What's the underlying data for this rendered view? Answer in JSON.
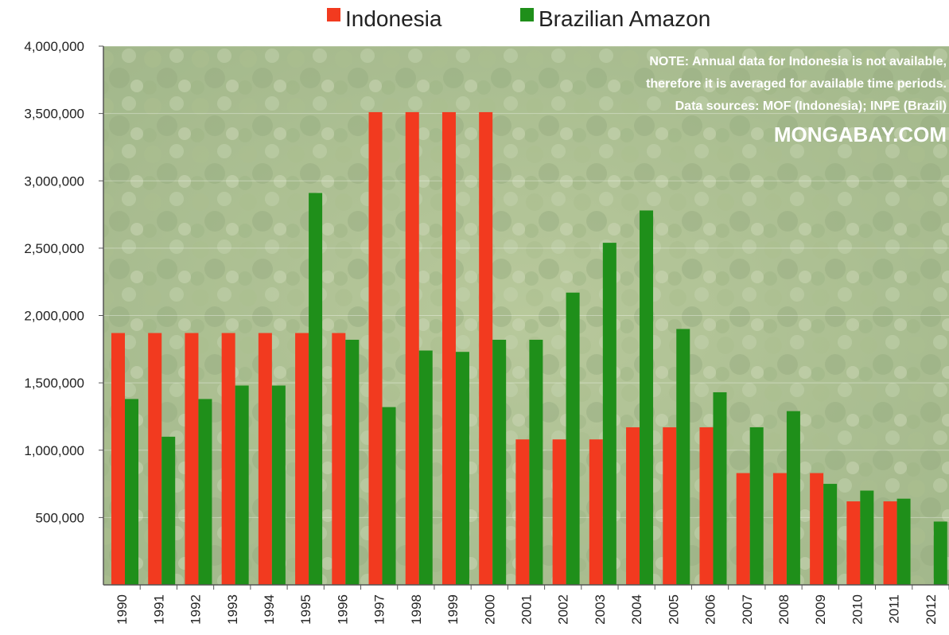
{
  "legend": {
    "indonesia_label": "Indonesia",
    "brazil_label": "Brazilian Amazon"
  },
  "note": {
    "line1": "NOTE: Annual data for Indonesia is not available,",
    "line2": "therefore it is averaged for available time periods.",
    "line3": "Data sources: MOF (Indonesia); INPE (Brazil)",
    "brand": "MONGABAY.COM"
  },
  "colors": {
    "indonesia": "#f23a1f",
    "brazil": "#1f8f1a",
    "forest_light": "#b9c99a",
    "forest_dark": "#7f9a63"
  },
  "chart_data": {
    "type": "bar",
    "categories": [
      "1990",
      "1991",
      "1992",
      "1993",
      "1994",
      "1995",
      "1996",
      "1997",
      "1998",
      "1999",
      "2000",
      "2001",
      "2002",
      "2003",
      "2004",
      "2005",
      "2006",
      "2007",
      "2008",
      "2009",
      "2010",
      "2011",
      "2012"
    ],
    "series": [
      {
        "name": "Indonesia",
        "values": [
          1870000,
          1870000,
          1870000,
          1870000,
          1870000,
          1870000,
          1870000,
          3510000,
          3510000,
          3510000,
          3510000,
          1080000,
          1080000,
          1080000,
          1170000,
          1170000,
          1170000,
          830000,
          830000,
          830000,
          620000,
          620000,
          null
        ]
      },
      {
        "name": "Brazilian Amazon",
        "values": [
          1380000,
          1100000,
          1380000,
          1480000,
          1480000,
          2910000,
          1820000,
          1320000,
          1740000,
          1730000,
          1820000,
          1820000,
          2170000,
          2540000,
          2780000,
          1900000,
          1430000,
          1170000,
          1290000,
          750000,
          700000,
          640000,
          470000
        ]
      }
    ],
    "ylim": [
      0,
      4000000
    ],
    "yticks": [
      "500,000",
      "1,000,000",
      "1,500,000",
      "2,000,000",
      "2,500,000",
      "3,000,000",
      "3,500,000",
      "4,000,000"
    ],
    "ytick_values": [
      500000,
      1000000,
      1500000,
      2000000,
      2500000,
      3000000,
      3500000,
      4000000
    ],
    "legend_position": "top-center",
    "grid": true
  }
}
